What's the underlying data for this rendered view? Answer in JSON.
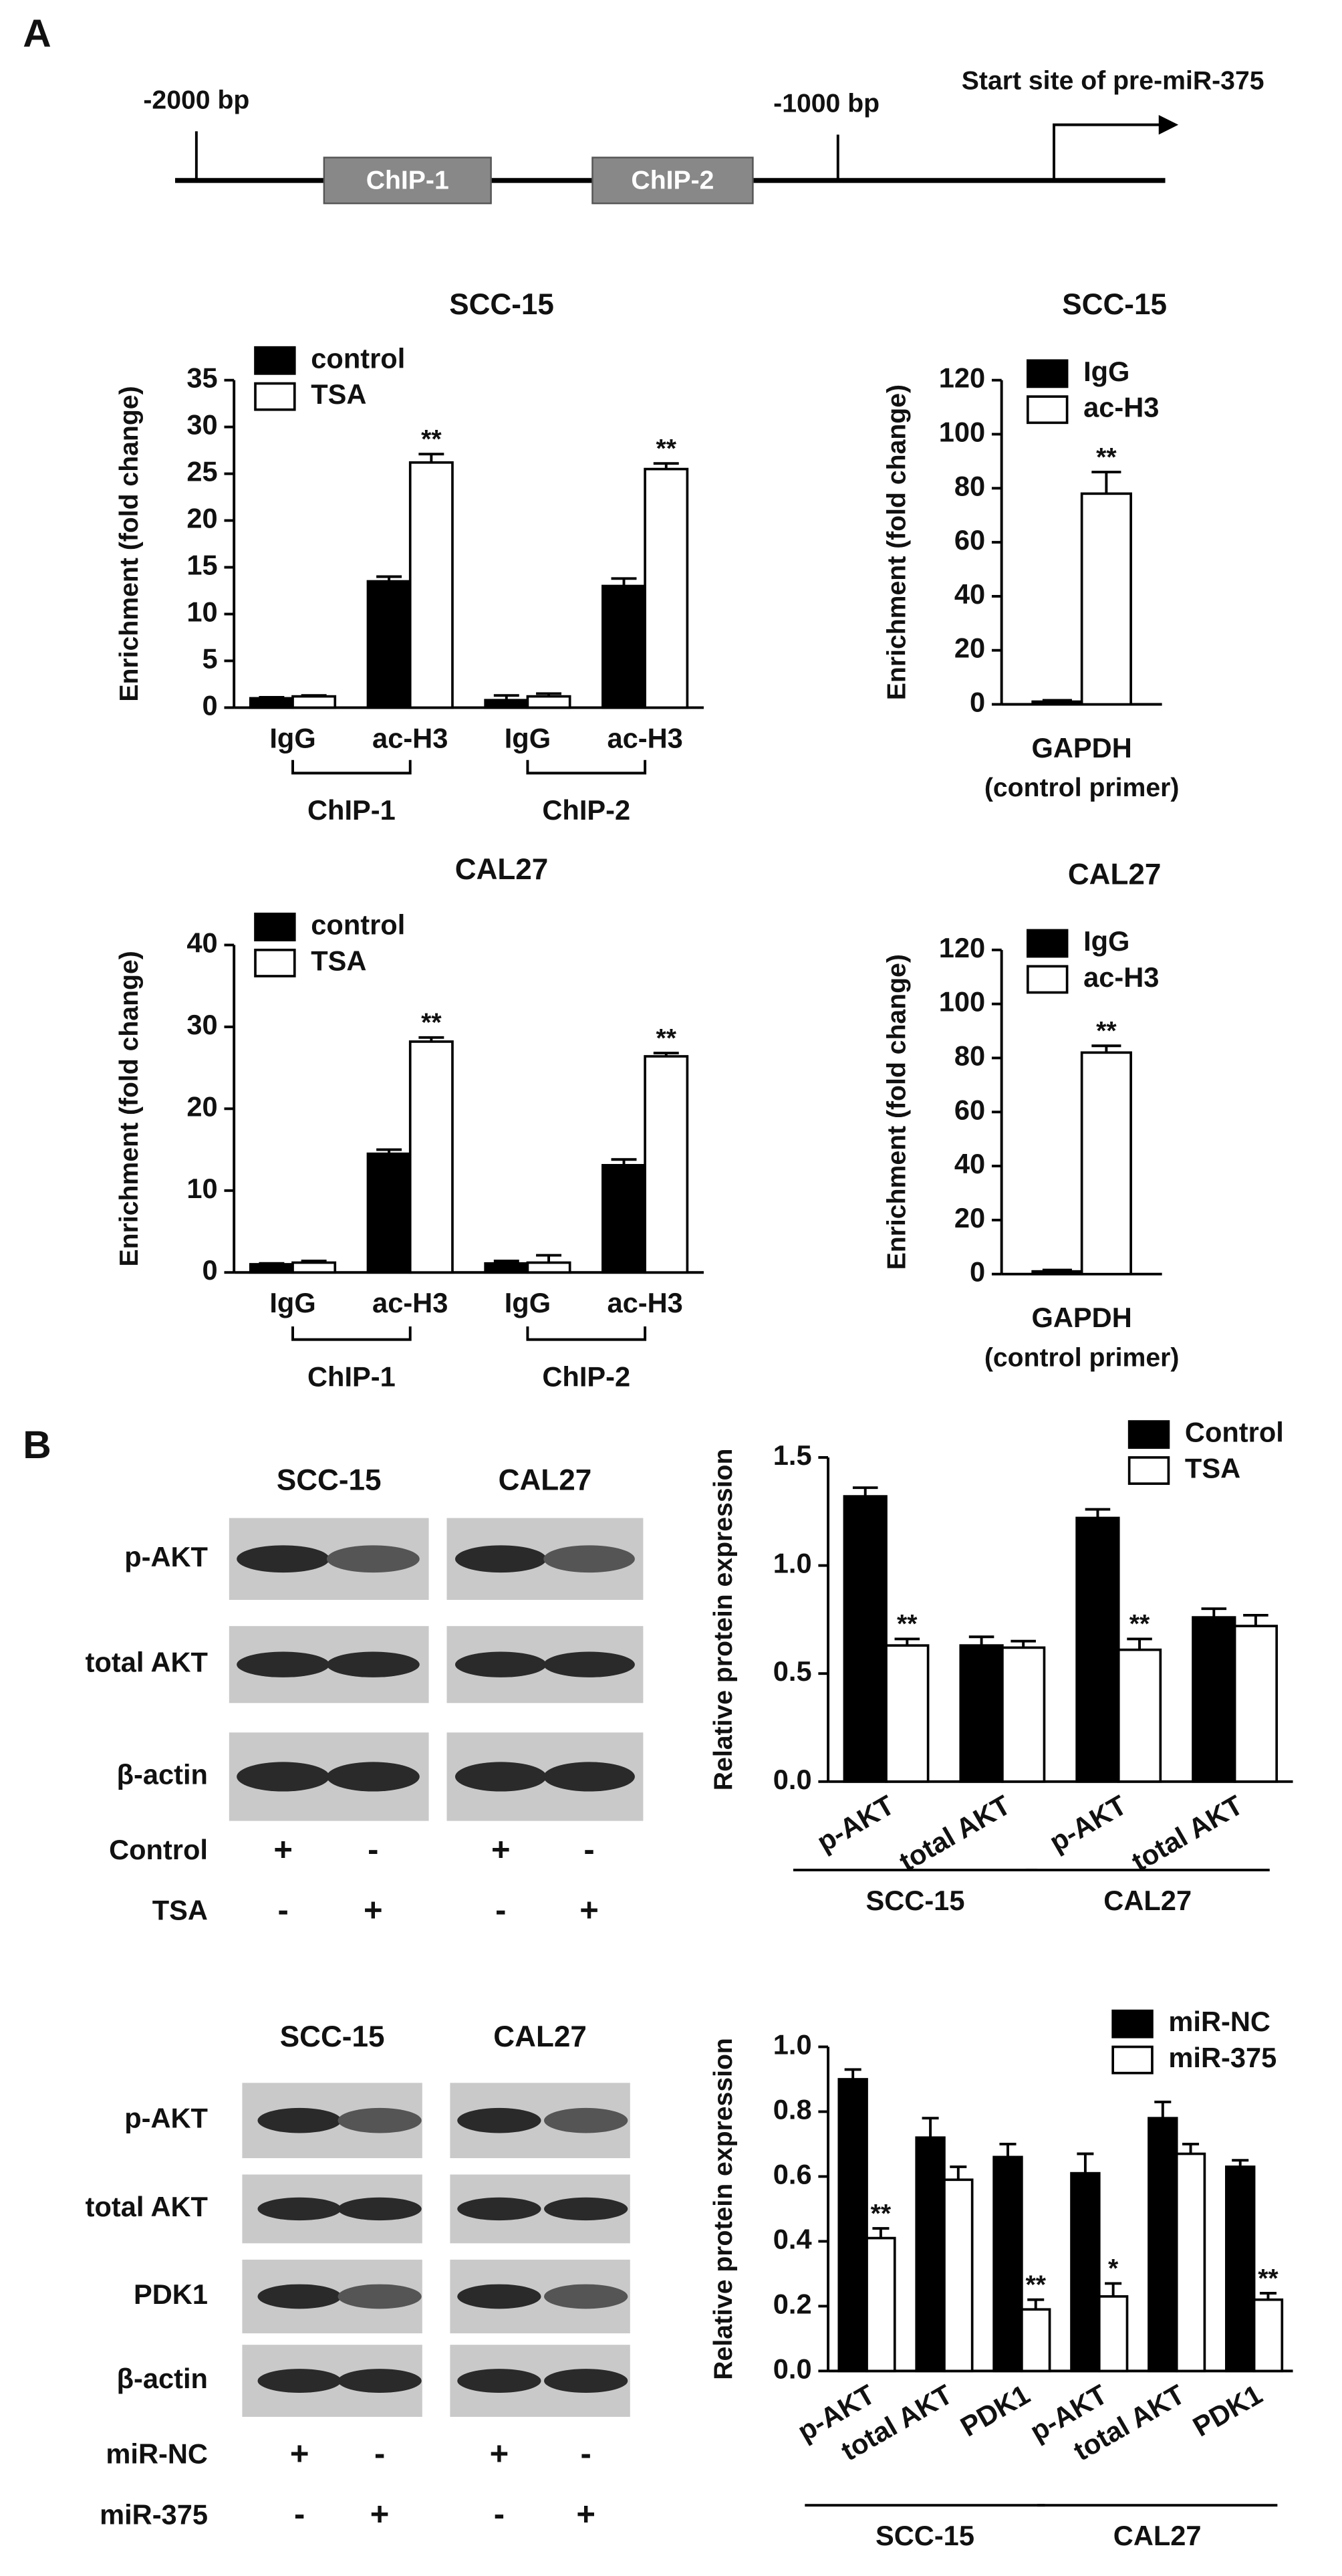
{
  "panels": [
    "A",
    "B"
  ],
  "diagram": {
    "marks": [
      "-2000 bp",
      "-1000 bp"
    ],
    "start_site": "Start site of pre-miR-375",
    "regions": [
      "ChIP-1",
      "ChIP-2"
    ]
  },
  "blots": [
    {
      "columns": [
        "SCC-15",
        "CAL27"
      ],
      "rows": [
        "p-AKT",
        "total AKT",
        "β-actin"
      ],
      "treatments": [
        {
          "name": "Control",
          "signs": [
            "+",
            "-",
            "+",
            "-"
          ]
        },
        {
          "name": "TSA",
          "signs": [
            "-",
            "+",
            "-",
            "+"
          ]
        }
      ]
    },
    {
      "columns": [
        "SCC-15",
        "CAL27"
      ],
      "rows": [
        "p-AKT",
        "total AKT",
        "PDK1",
        "β-actin"
      ],
      "treatments": [
        {
          "name": "miR-NC",
          "signs": [
            "+",
            "-",
            "+",
            "-"
          ]
        },
        {
          "name": "miR-375",
          "signs": [
            "-",
            "+",
            "-",
            "+"
          ]
        }
      ]
    }
  ],
  "chart_data": [
    {
      "type": "bar",
      "title": "SCC-15",
      "ylabel": "Enrichment (fold change)",
      "categories": [
        "IgG",
        "ac-H3",
        "IgG",
        "ac-H3"
      ],
      "groups": [
        {
          "label": "ChIP-1",
          "categories": [
            0,
            1
          ]
        },
        {
          "label": "ChIP-2",
          "categories": [
            2,
            3
          ]
        }
      ],
      "series": [
        {
          "name": "control",
          "color": "#000000",
          "values": [
            1.0,
            13.5,
            0.8,
            13.0
          ],
          "errors": [
            0.1,
            0.5,
            0.5,
            0.8
          ]
        },
        {
          "name": "TSA",
          "color": "#ffffff",
          "values": [
            1.2,
            26.2,
            1.2,
            25.5
          ],
          "errors": [
            0.1,
            0.9,
            0.3,
            0.6
          ]
        }
      ],
      "annotations": [
        {
          "series": 1,
          "category": 1,
          "text": "**"
        },
        {
          "series": 1,
          "category": 3,
          "text": "**"
        }
      ],
      "ylim": [
        0,
        35
      ],
      "yticks": [
        0,
        5,
        10,
        15,
        20,
        25,
        30,
        35
      ],
      "legend": "top-left"
    },
    {
      "type": "bar",
      "title": "SCC-15",
      "ylabel": "Enrichment (fold change)",
      "categories": [
        "GAPDH"
      ],
      "xlabel": "(control primer)",
      "series": [
        {
          "name": "IgG",
          "color": "#000000",
          "values": [
            1.0
          ],
          "errors": [
            0.5
          ]
        },
        {
          "name": "ac-H3",
          "color": "#ffffff",
          "values": [
            78
          ],
          "errors": [
            8
          ]
        }
      ],
      "annotations": [
        {
          "series": 1,
          "category": 0,
          "text": "**"
        }
      ],
      "ylim": [
        0,
        120
      ],
      "yticks": [
        0,
        20,
        40,
        60,
        80,
        100,
        120
      ],
      "legend": "top-left"
    },
    {
      "type": "bar",
      "title": "CAL27",
      "ylabel": "Enrichment (fold change)",
      "categories": [
        "IgG",
        "ac-H3",
        "IgG",
        "ac-H3"
      ],
      "groups": [
        {
          "label": "ChIP-1",
          "categories": [
            0,
            1
          ]
        },
        {
          "label": "ChIP-2",
          "categories": [
            2,
            3
          ]
        }
      ],
      "series": [
        {
          "name": "control",
          "color": "#000000",
          "values": [
            1.0,
            14.5,
            1.1,
            13.1
          ],
          "errors": [
            0.1,
            0.5,
            0.3,
            0.7
          ]
        },
        {
          "name": "TSA",
          "color": "#ffffff",
          "values": [
            1.2,
            28.2,
            1.2,
            26.4
          ],
          "errors": [
            0.2,
            0.5,
            0.9,
            0.4
          ]
        }
      ],
      "annotations": [
        {
          "series": 1,
          "category": 1,
          "text": "**"
        },
        {
          "series": 1,
          "category": 3,
          "text": "**"
        }
      ],
      "ylim": [
        0,
        40
      ],
      "yticks": [
        0,
        10,
        20,
        30,
        40
      ],
      "legend": "top-left"
    },
    {
      "type": "bar",
      "title": "CAL27",
      "ylabel": "Enrichment (fold change)",
      "categories": [
        "GAPDH"
      ],
      "xlabel": "(control primer)",
      "series": [
        {
          "name": "IgG",
          "color": "#000000",
          "values": [
            1.0
          ],
          "errors": [
            0.5
          ]
        },
        {
          "name": "ac-H3",
          "color": "#ffffff",
          "values": [
            82
          ],
          "errors": [
            2.5
          ]
        }
      ],
      "annotations": [
        {
          "series": 1,
          "category": 0,
          "text": "**"
        }
      ],
      "ylim": [
        0,
        120
      ],
      "yticks": [
        0,
        20,
        40,
        60,
        80,
        100,
        120
      ],
      "legend": "top-left"
    },
    {
      "type": "bar",
      "ylabel": "Relative protein expression",
      "categories": [
        "p-AKT",
        "total AKT",
        "p-AKT",
        "total AKT"
      ],
      "groups": [
        {
          "label": "SCC-15",
          "categories": [
            0,
            1
          ]
        },
        {
          "label": "CAL27",
          "categories": [
            2,
            3
          ]
        }
      ],
      "series": [
        {
          "name": "Control",
          "color": "#000000",
          "values": [
            1.32,
            0.63,
            1.22,
            0.76
          ],
          "errors": [
            0.04,
            0.04,
            0.04,
            0.04
          ]
        },
        {
          "name": "TSA",
          "color": "#ffffff",
          "values": [
            0.63,
            0.62,
            0.61,
            0.72
          ],
          "errors": [
            0.03,
            0.03,
            0.05,
            0.05
          ]
        }
      ],
      "annotations": [
        {
          "series": 1,
          "category": 0,
          "text": "**"
        },
        {
          "series": 1,
          "category": 2,
          "text": "**"
        }
      ],
      "ylim": [
        0,
        1.5
      ],
      "yticks": [
        {
          "value": 0,
          "label": "0.0"
        },
        0.5,
        {
          "value": 1,
          "label": "1.0"
        },
        1.5
      ],
      "legend": "top-right"
    },
    {
      "type": "bar",
      "ylabel": "Relative protein expression",
      "categories": [
        "p-AKT",
        "total AKT",
        "PDK1",
        "p-AKT",
        "total AKT",
        "PDK1"
      ],
      "groups": [
        {
          "label": "SCC-15",
          "categories": [
            0,
            2
          ]
        },
        {
          "label": "CAL27",
          "categories": [
            3,
            5
          ]
        }
      ],
      "series": [
        {
          "name": "miR-NC",
          "color": "#000000",
          "values": [
            0.9,
            0.72,
            0.66,
            0.61,
            0.78,
            0.63
          ],
          "errors": [
            0.03,
            0.06,
            0.04,
            0.06,
            0.05,
            0.02
          ]
        },
        {
          "name": "miR-375",
          "color": "#ffffff",
          "values": [
            0.41,
            0.59,
            0.19,
            0.23,
            0.67,
            0.22
          ],
          "errors": [
            0.03,
            0.04,
            0.03,
            0.04,
            0.03,
            0.02
          ]
        }
      ],
      "annotations": [
        {
          "series": 1,
          "category": 0,
          "text": "**"
        },
        {
          "series": 1,
          "category": 2,
          "text": "**"
        },
        {
          "series": 1,
          "category": 3,
          "text": "*"
        },
        {
          "series": 1,
          "category": 5,
          "text": "**"
        }
      ],
      "ylim": [
        0,
        1.0
      ],
      "yticks": [
        {
          "value": 0,
          "label": "0.0"
        },
        0.2,
        0.4,
        0.6,
        0.8,
        {
          "value": 1,
          "label": "1.0"
        }
      ],
      "legend": "top-right"
    }
  ]
}
